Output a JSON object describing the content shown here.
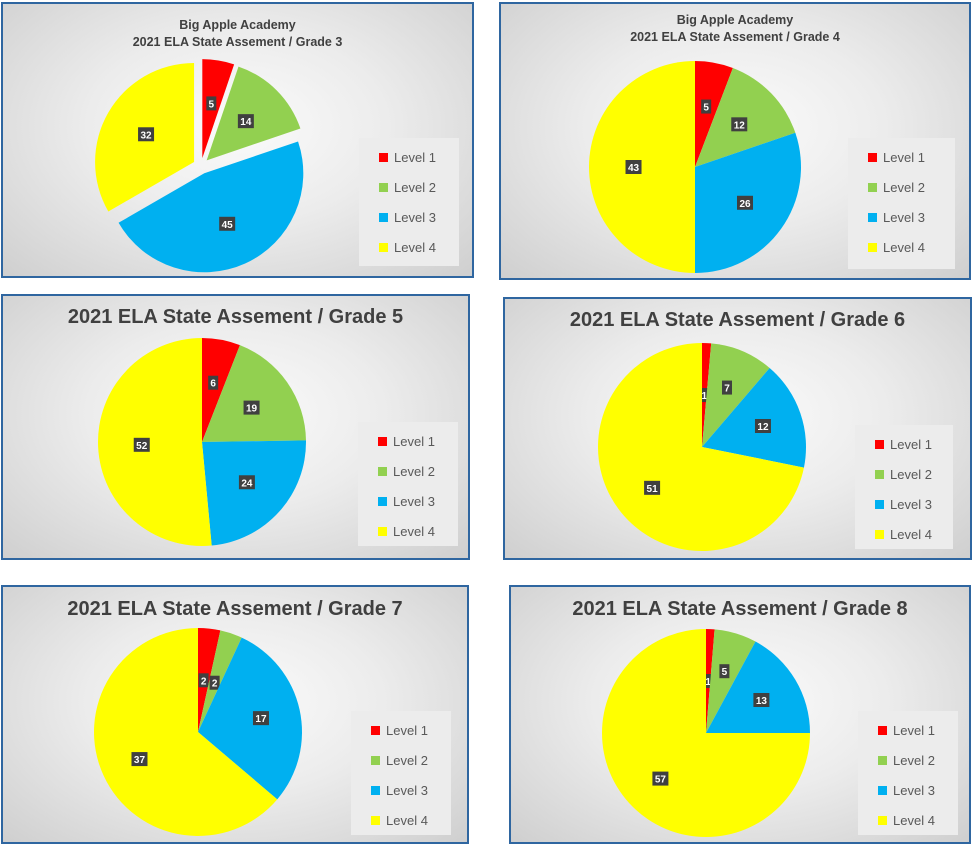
{
  "legend_labels": [
    "Level 1",
    "Level 2",
    "Level 3",
    "Level 4"
  ],
  "colors": {
    "level1": "#ff0000",
    "level2": "#92d050",
    "level3": "#00b0f0",
    "level4": "#ffff00",
    "frame": "#2f66a0",
    "label_box": "#404040"
  },
  "chart_data": [
    {
      "type": "pie",
      "title_lines": [
        "Big Apple Academy",
        "2021 ELA  State Assement  / Grade 3"
      ],
      "categories": [
        "Level 1",
        "Level 2",
        "Level 3",
        "Level 4"
      ],
      "values": [
        5,
        14,
        45,
        32
      ],
      "exploded": true,
      "legend": "right"
    },
    {
      "type": "pie",
      "title_lines": [
        "Big Apple Academy",
        "2021 ELA  State Assement  / Grade 4"
      ],
      "categories": [
        "Level 1",
        "Level 2",
        "Level 3",
        "Level 4"
      ],
      "values": [
        5,
        12,
        26,
        43
      ],
      "exploded": false,
      "legend": "right"
    },
    {
      "type": "pie",
      "title_lines": [
        "2021 ELA  State Assement  / Grade 5"
      ],
      "categories": [
        "Level 1",
        "Level 2",
        "Level 3",
        "Level 4"
      ],
      "values": [
        6,
        19,
        24,
        52
      ],
      "exploded": false,
      "legend": "right"
    },
    {
      "type": "pie",
      "title_lines": [
        "2021 ELA  State Assement  / Grade 6"
      ],
      "categories": [
        "Level 1",
        "Level 2",
        "Level 3",
        "Level 4"
      ],
      "values": [
        1,
        7,
        12,
        51
      ],
      "exploded": false,
      "legend": "right"
    },
    {
      "type": "pie",
      "title_lines": [
        "2021 ELA  State Assement  / Grade 7"
      ],
      "categories": [
        "Level 1",
        "Level 2",
        "Level 3",
        "Level 4"
      ],
      "values": [
        2,
        2,
        17,
        37
      ],
      "exploded": false,
      "legend": "right"
    },
    {
      "type": "pie",
      "title_lines": [
        "2021 ELA  State Assement  / Grade 8"
      ],
      "categories": [
        "Level 1",
        "Level 2",
        "Level 3",
        "Level 4"
      ],
      "values": [
        1,
        5,
        13,
        57
      ],
      "exploded": false,
      "legend": "right"
    }
  ]
}
